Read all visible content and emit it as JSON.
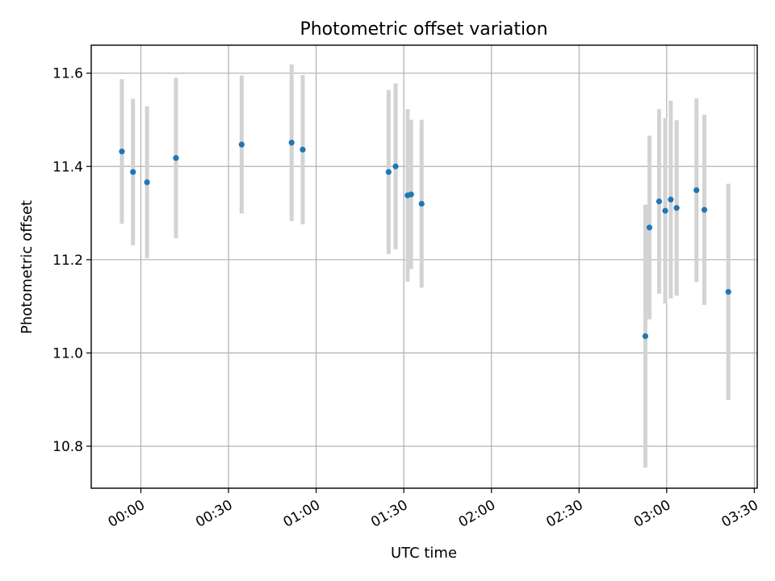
{
  "chart_data": {
    "type": "scatter",
    "title": "Photometric offset variation",
    "xlabel": "UTC time",
    "ylabel": "Photometric offset",
    "x_ticks": [
      "00:00",
      "00:30",
      "01:00",
      "01:30",
      "02:00",
      "02:30",
      "03:00",
      "03:30"
    ],
    "x_tick_minutes": [
      0,
      30,
      60,
      90,
      120,
      150,
      180,
      210
    ],
    "y_ticks": [
      10.8,
      11.0,
      11.2,
      11.4,
      11.6
    ],
    "xlim_minutes": [
      -17,
      211
    ],
    "ylim": [
      10.71,
      11.66
    ],
    "grid": true,
    "colors": {
      "marker": "#1f77b4",
      "errorbar": "#d3d3d3"
    },
    "points": [
      {
        "time": "23:53",
        "t": -6.5,
        "y": 11.432,
        "err": 0.155
      },
      {
        "time": "23:57",
        "t": -2.7,
        "y": 11.388,
        "err": 0.157
      },
      {
        "time": "00:02",
        "t": 2.1,
        "y": 11.366,
        "err": 0.163
      },
      {
        "time": "00:12",
        "t": 12.0,
        "y": 11.418,
        "err": 0.172
      },
      {
        "time": "00:35",
        "t": 34.5,
        "y": 11.447,
        "err": 0.148
      },
      {
        "time": "00:52",
        "t": 51.6,
        "y": 11.451,
        "err": 0.168
      },
      {
        "time": "00:55",
        "t": 55.4,
        "y": 11.436,
        "err": 0.16
      },
      {
        "time": "01:25",
        "t": 84.8,
        "y": 11.388,
        "err": 0.176
      },
      {
        "time": "01:27",
        "t": 87.2,
        "y": 11.4,
        "err": 0.178
      },
      {
        "time": "01:31",
        "t": 91.3,
        "y": 11.338,
        "err": 0.185
      },
      {
        "time": "01:32",
        "t": 92.5,
        "y": 11.34,
        "err": 0.16
      },
      {
        "time": "01:36",
        "t": 96.1,
        "y": 11.32,
        "err": 0.18
      },
      {
        "time": "02:53",
        "t": 172.7,
        "y": 11.036,
        "err": 0.282
      },
      {
        "time": "02:54",
        "t": 174.1,
        "y": 11.269,
        "err": 0.197
      },
      {
        "time": "02:57",
        "t": 177.4,
        "y": 11.325,
        "err": 0.198
      },
      {
        "time": "02:59",
        "t": 179.5,
        "y": 11.305,
        "err": 0.199
      },
      {
        "time": "03:01",
        "t": 181.4,
        "y": 11.329,
        "err": 0.212
      },
      {
        "time": "03:03",
        "t": 183.4,
        "y": 11.311,
        "err": 0.188
      },
      {
        "time": "03:10",
        "t": 190.2,
        "y": 11.349,
        "err": 0.197
      },
      {
        "time": "03:13",
        "t": 192.9,
        "y": 11.307,
        "err": 0.204
      },
      {
        "time": "03:21",
        "t": 201.1,
        "y": 11.131,
        "err": 0.232
      }
    ]
  }
}
